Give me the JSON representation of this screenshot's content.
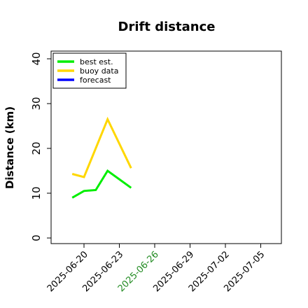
{
  "chart_data": {
    "type": "line",
    "title": "Drift distance",
    "ylabel": "Distance (km)",
    "xlabel": "",
    "ylim": [
      0,
      40
    ],
    "yticks": [
      0,
      10,
      20,
      30,
      40
    ],
    "xlim": [
      "2025-06-18",
      "2025-07-06"
    ],
    "xticks": [
      "2025-06-20",
      "2025-06-23",
      "2025-06-26",
      "2025-06-29",
      "2025-07-02",
      "2025-07-05"
    ],
    "highlight_tick": "2025-06-26",
    "highlight_color": "#228B22",
    "tick_color": "#000000",
    "legend_position": "top-left",
    "series": [
      {
        "name": "best est.",
        "color": "#00ee00",
        "x": [
          "2025-06-19",
          "2025-06-20",
          "2025-06-21",
          "2025-06-22",
          "2025-06-24"
        ],
        "values": [
          9.0,
          10.5,
          10.7,
          15.0,
          11.2
        ]
      },
      {
        "name": "buoy data",
        "color": "#ffd700",
        "x": [
          "2025-06-19",
          "2025-06-20",
          "2025-06-22",
          "2025-06-24"
        ],
        "values": [
          14.3,
          13.6,
          26.5,
          15.6
        ]
      },
      {
        "name": "forecast",
        "color": "#0000ff",
        "x": [],
        "values": []
      }
    ]
  }
}
